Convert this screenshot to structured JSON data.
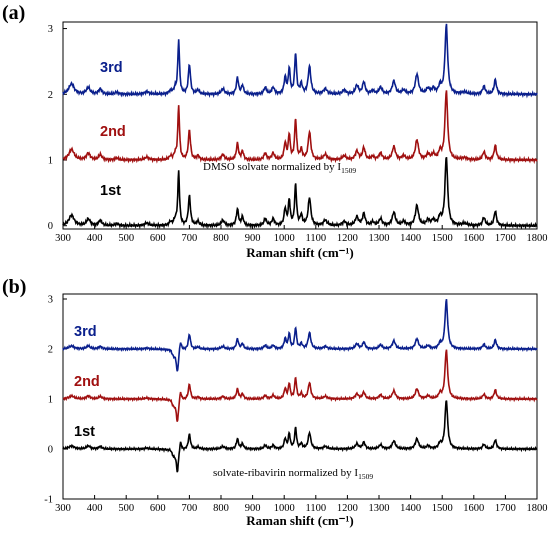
{
  "chart_data": [
    {
      "type": "line",
      "panel_label": "(a)",
      "xlabel": "Raman shift (cm⁻¹)",
      "ylabel": "",
      "xlim": [
        300,
        1800
      ],
      "ylim": [
        -0.05,
        3.1
      ],
      "x_ticks": [
        300,
        400,
        500,
        600,
        700,
        800,
        900,
        1000,
        1100,
        1200,
        1300,
        1400,
        1500,
        1600,
        1700,
        1800
      ],
      "y_ticks": [
        0,
        1,
        2,
        3
      ],
      "annotation": {
        "text": "DMSO solvate normalized by I",
        "subscript": "1509"
      },
      "series": [
        {
          "name": "1st",
          "color": "#000000",
          "offset": 0
        },
        {
          "name": "2nd",
          "color": "#a01010",
          "offset": 1
        },
        {
          "name": "3rd",
          "color": "#0a1f8c",
          "offset": 2
        }
      ],
      "peaks": [
        [
          327,
          0.16,
          10
        ],
        [
          380,
          0.1,
          7
        ],
        [
          418,
          0.08,
          6
        ],
        [
          470,
          0.03,
          6
        ],
        [
          565,
          0.04,
          8
        ],
        [
          640,
          0.05,
          5
        ],
        [
          655,
          0.08,
          5
        ],
        [
          666,
          0.82,
          3.2
        ],
        [
          700,
          0.45,
          4
        ],
        [
          727,
          0.06,
          5
        ],
        [
          806,
          0.08,
          6
        ],
        [
          852,
          0.25,
          4
        ],
        [
          868,
          0.13,
          4
        ],
        [
          940,
          0.1,
          5
        ],
        [
          965,
          0.1,
          5
        ],
        [
          1003,
          0.25,
          4
        ],
        [
          1016,
          0.38,
          3.5
        ],
        [
          1036,
          0.62,
          3.5
        ],
        [
          1054,
          0.15,
          4
        ],
        [
          1080,
          0.42,
          5
        ],
        [
          1130,
          0.08,
          7
        ],
        [
          1190,
          0.06,
          7
        ],
        [
          1230,
          0.13,
          6
        ],
        [
          1252,
          0.18,
          5
        ],
        [
          1280,
          0.05,
          6
        ],
        [
          1305,
          0.1,
          6
        ],
        [
          1347,
          0.2,
          6
        ],
        [
          1378,
          0.06,
          6
        ],
        [
          1420,
          0.3,
          6
        ],
        [
          1455,
          0.08,
          6
        ],
        [
          1472,
          0.08,
          6
        ],
        [
          1493,
          0.12,
          5
        ],
        [
          1513,
          1.05,
          5
        ],
        [
          1570,
          0.03,
          10
        ],
        [
          1632,
          0.12,
          5
        ],
        [
          1668,
          0.22,
          4.5
        ]
      ],
      "dip": null
    },
    {
      "type": "line",
      "panel_label": "(b)",
      "xlabel": "Raman shift (cm⁻¹)",
      "ylabel": "",
      "xlim": [
        300,
        1800
      ],
      "ylim": [
        -1,
        3.1
      ],
      "x_ticks": [
        300,
        400,
        500,
        600,
        700,
        800,
        900,
        1000,
        1100,
        1200,
        1300,
        1400,
        1500,
        1600,
        1700,
        1800
      ],
      "y_ticks": [
        -1,
        0,
        1,
        2,
        3
      ],
      "annotation": {
        "text": "solvate-ribavirin normalized by I",
        "subscript": "1509"
      },
      "series": [
        {
          "name": "1st",
          "color": "#000000",
          "offset": 0
        },
        {
          "name": "2nd",
          "color": "#a01010",
          "offset": 1
        },
        {
          "name": "3rd",
          "color": "#0a1f8c",
          "offset": 2
        }
      ],
      "peaks": [
        [
          327,
          0.06,
          10
        ],
        [
          380,
          0.06,
          7
        ],
        [
          418,
          0.05,
          6
        ],
        [
          565,
          0.02,
          8
        ],
        [
          640,
          0.03,
          5
        ],
        [
          672,
          0.2,
          3.5
        ],
        [
          700,
          0.3,
          4
        ],
        [
          727,
          0.04,
          5
        ],
        [
          806,
          0.05,
          6
        ],
        [
          852,
          0.2,
          4
        ],
        [
          868,
          0.1,
          4
        ],
        [
          940,
          0.07,
          5
        ],
        [
          965,
          0.07,
          5
        ],
        [
          1003,
          0.2,
          4
        ],
        [
          1016,
          0.3,
          3.5
        ],
        [
          1036,
          0.42,
          3.5
        ],
        [
          1054,
          0.1,
          4
        ],
        [
          1080,
          0.32,
          5
        ],
        [
          1130,
          0.05,
          7
        ],
        [
          1230,
          0.1,
          6
        ],
        [
          1252,
          0.13,
          5
        ],
        [
          1305,
          0.08,
          6
        ],
        [
          1347,
          0.16,
          6
        ],
        [
          1420,
          0.2,
          6
        ],
        [
          1455,
          0.06,
          6
        ],
        [
          1493,
          0.1,
          5
        ],
        [
          1513,
          0.98,
          5
        ],
        [
          1632,
          0.09,
          5
        ],
        [
          1668,
          0.18,
          4.5
        ]
      ],
      "dip": [
        [
          662,
          -0.45,
          4
        ],
        [
          650,
          -0.12,
          8
        ]
      ]
    }
  ]
}
